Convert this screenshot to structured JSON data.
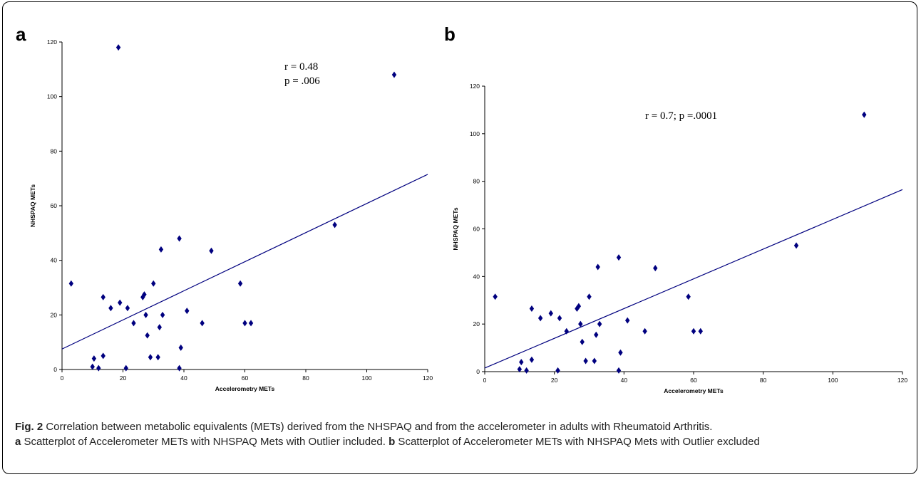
{
  "caption": {
    "fig_label": "Fig. 2",
    "fig_text": " Correlation between metabolic equivalents (METs) derived from the NHSPAQ and from the accelerometer in adults with Rheumatoid Arthritis.",
    "a_label": "a",
    "a_text": " Scatterplot of Accelerometer METs with NHSPAQ Mets with Outlier included.",
    "b_label": "b",
    "b_text": " Scatterplot of Accelerometer METs with NHSPAQ Mets with Outlier excluded"
  },
  "colors": {
    "marker": "#00007f",
    "line": "#00007f"
  },
  "chart_data": [
    {
      "panel": "a",
      "type": "scatter",
      "xlabel": "Accelerometry METs",
      "ylabel": "NHSPAQ METs",
      "xlim": [
        0,
        120
      ],
      "ylim": [
        0,
        120
      ],
      "xticks": [
        0,
        20,
        40,
        60,
        80,
        100,
        120
      ],
      "yticks": [
        0,
        20,
        40,
        60,
        80,
        100,
        120
      ],
      "annotations": [
        "r = 0.48",
        "p = .006"
      ],
      "fit_line": {
        "x": [
          0,
          120
        ],
        "y": [
          7.5,
          71.5
        ]
      },
      "points": [
        [
          3,
          31.5
        ],
        [
          10,
          1
        ],
        [
          10.5,
          4
        ],
        [
          12,
          0.5
        ],
        [
          13.5,
          5
        ],
        [
          13.5,
          26.5
        ],
        [
          16,
          22.5
        ],
        [
          18.5,
          118
        ],
        [
          19,
          24.5
        ],
        [
          21,
          0.5
        ],
        [
          21.5,
          22.5
        ],
        [
          23.5,
          17
        ],
        [
          26.5,
          26.5
        ],
        [
          27,
          27.5
        ],
        [
          27.5,
          20
        ],
        [
          28,
          12.5
        ],
        [
          29,
          4.5
        ],
        [
          30,
          31.5
        ],
        [
          31.5,
          4.5
        ],
        [
          32,
          15.5
        ],
        [
          32.5,
          44
        ],
        [
          33,
          20
        ],
        [
          38.5,
          0.5
        ],
        [
          38.5,
          48
        ],
        [
          39,
          8
        ],
        [
          41,
          21.5
        ],
        [
          46,
          17
        ],
        [
          49,
          43.5
        ],
        [
          58.5,
          31.5
        ],
        [
          60,
          17
        ],
        [
          62,
          17
        ],
        [
          89.5,
          53
        ],
        [
          109,
          108
        ]
      ]
    },
    {
      "panel": "b",
      "type": "scatter",
      "xlabel": "Accelerometry METs",
      "ylabel": "NHSPAQ METs",
      "xlim": [
        0,
        120
      ],
      "ylim": [
        0,
        120
      ],
      "xticks": [
        0,
        20,
        40,
        60,
        80,
        100,
        120
      ],
      "yticks": [
        0,
        20,
        40,
        60,
        80,
        100,
        120
      ],
      "annotations": [
        "r = 0.7; p =.0001"
      ],
      "fit_line": {
        "x": [
          0,
          120
        ],
        "y": [
          1.5,
          76.5
        ]
      },
      "points": [
        [
          3,
          31.5
        ],
        [
          10,
          1
        ],
        [
          10.5,
          4
        ],
        [
          12,
          0.5
        ],
        [
          13.5,
          5
        ],
        [
          13.5,
          26.5
        ],
        [
          16,
          22.5
        ],
        [
          19,
          24.5
        ],
        [
          21,
          0.5
        ],
        [
          21.5,
          22.5
        ],
        [
          23.5,
          17
        ],
        [
          26.5,
          26.5
        ],
        [
          27,
          27.5
        ],
        [
          27.5,
          20
        ],
        [
          28,
          12.5
        ],
        [
          29,
          4.5
        ],
        [
          30,
          31.5
        ],
        [
          31.5,
          4.5
        ],
        [
          32,
          15.5
        ],
        [
          32.5,
          44
        ],
        [
          33,
          20
        ],
        [
          38.5,
          0.5
        ],
        [
          38.5,
          48
        ],
        [
          39,
          8
        ],
        [
          41,
          21.5
        ],
        [
          46,
          17
        ],
        [
          49,
          43.5
        ],
        [
          58.5,
          31.5
        ],
        [
          60,
          17
        ],
        [
          62,
          17
        ],
        [
          89.5,
          53
        ],
        [
          109,
          108
        ]
      ]
    }
  ]
}
